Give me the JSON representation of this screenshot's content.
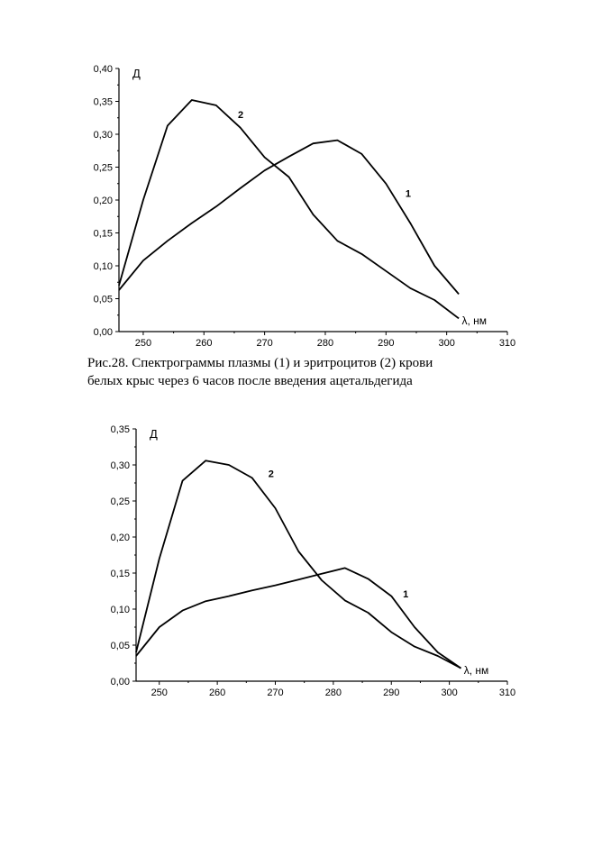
{
  "caption": {
    "line1": "Рис.28. Спектрограммы плазмы (1) и эритроцитов (2) крови",
    "line2": "белых крыс через 6 часов после введения ацетальдегида"
  },
  "chart_data": [
    {
      "type": "line",
      "title": "",
      "xlabel": "λ, нм",
      "ylabel": "Д",
      "xlim": [
        246,
        310
      ],
      "ylim": [
        0,
        0.4
      ],
      "xticks": [
        250,
        260,
        270,
        280,
        290,
        300,
        310
      ],
      "yticks": [
        "0,00",
        "0,05",
        "0,10",
        "0,15",
        "0,20",
        "0,25",
        "0,30",
        "0,35",
        "0,40"
      ],
      "grid": false,
      "series": [
        {
          "name": "1",
          "x": [
            246,
            250,
            254,
            258,
            262,
            266,
            270,
            274,
            278,
            282,
            286,
            290,
            294,
            298,
            302
          ],
          "y": [
            0.063,
            0.108,
            0.138,
            0.165,
            0.19,
            0.218,
            0.245,
            0.266,
            0.286,
            0.291,
            0.27,
            0.225,
            0.165,
            0.1,
            0.057
          ]
        },
        {
          "name": "2",
          "x": [
            246,
            250,
            254,
            258,
            262,
            266,
            270,
            274,
            278,
            282,
            286,
            290,
            294,
            298,
            302
          ],
          "y": [
            0.07,
            0.2,
            0.313,
            0.352,
            0.344,
            0.31,
            0.265,
            0.235,
            0.178,
            0.138,
            0.118,
            0.092,
            0.066,
            0.048,
            0.02
          ]
        }
      ]
    },
    {
      "type": "line",
      "title": "",
      "xlabel": "λ, нм",
      "ylabel": "Д",
      "xlim": [
        246,
        310
      ],
      "ylim": [
        0,
        0.35
      ],
      "xticks": [
        250,
        260,
        270,
        280,
        290,
        300,
        310
      ],
      "yticks": [
        "0,00",
        "0,05",
        "0,10",
        "0,15",
        "0,20",
        "0,25",
        "0,30",
        "0,35"
      ],
      "grid": false,
      "series": [
        {
          "name": "1",
          "x": [
            246,
            250,
            254,
            258,
            262,
            266,
            270,
            274,
            278,
            282,
            286,
            290,
            294,
            298,
            302
          ],
          "y": [
            0.035,
            0.075,
            0.098,
            0.111,
            0.118,
            0.126,
            0.133,
            0.141,
            0.149,
            0.157,
            0.142,
            0.118,
            0.075,
            0.04,
            0.018
          ]
        },
        {
          "name": "2",
          "x": [
            246,
            250,
            254,
            258,
            262,
            266,
            270,
            274,
            278,
            282,
            286,
            290,
            294,
            298,
            302
          ],
          "y": [
            0.04,
            0.17,
            0.278,
            0.306,
            0.3,
            0.282,
            0.24,
            0.18,
            0.14,
            0.112,
            0.095,
            0.068,
            0.048,
            0.035,
            0.018
          ]
        }
      ]
    }
  ]
}
